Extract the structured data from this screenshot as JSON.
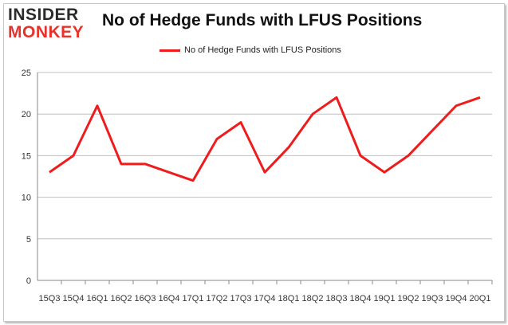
{
  "logo": {
    "line1": "INSIDER",
    "line2": "MONKEY"
  },
  "colors": {
    "series": "#ee1c1c",
    "grid": "#c0c0c0",
    "axis": "#888888"
  },
  "chart_data": {
    "type": "line",
    "title": "No of Hedge Funds with LFUS Positions",
    "categories": [
      "15Q3",
      "15Q4",
      "16Q1",
      "16Q2",
      "16Q3",
      "16Q4",
      "17Q1",
      "17Q2",
      "17Q3",
      "17Q4",
      "18Q1",
      "18Q2",
      "18Q3",
      "18Q4",
      "19Q1",
      "19Q2",
      "19Q3",
      "19Q4",
      "20Q1"
    ],
    "series": [
      {
        "name": "No of Hedge Funds with LFUS Positions",
        "values": [
          13,
          15,
          21,
          14,
          14,
          13,
          12,
          17,
          19,
          13,
          16,
          20,
          22,
          15,
          13,
          15,
          18,
          21,
          22
        ]
      }
    ],
    "yticks": [
      0,
      5,
      10,
      15,
      20,
      25
    ],
    "ylim": [
      0,
      25
    ],
    "grid": true,
    "legend_position": "top-center"
  }
}
